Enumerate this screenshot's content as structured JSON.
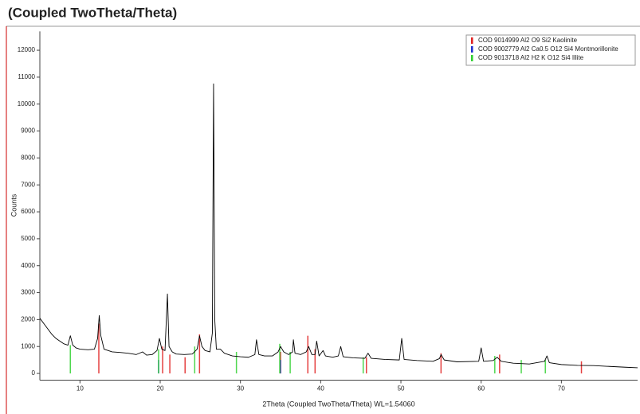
{
  "chart_data": {
    "type": "line",
    "title": "(Coupled TwoTheta/Theta)",
    "x_label": "2Theta (Coupled TwoTheta/Theta) WL=1.54060",
    "y_label": "Counts",
    "color": "#000000",
    "x": [
      5,
      5.5,
      6,
      6.5,
      7,
      7.5,
      8,
      8.5,
      8.8,
      9.1,
      9.5,
      10,
      11,
      11.8,
      12.2,
      12.4,
      12.6,
      13,
      14,
      15,
      16,
      17,
      17.8,
      18.3,
      19,
      19.6,
      19.9,
      20.2,
      20.6,
      20.9,
      21.1,
      21.5,
      22,
      23,
      24,
      24.6,
      24.9,
      25.2,
      25.6,
      26.2,
      26.5,
      26.65,
      26.8,
      27,
      27.5,
      28,
      29,
      30,
      31,
      31.8,
      32,
      32.3,
      33,
      34,
      34.7,
      35,
      35.4,
      36,
      36.5,
      36.6,
      36.8,
      37.5,
      38.2,
      38.5,
      38.9,
      39.3,
      39.5,
      39.8,
      40.3,
      40.6,
      41.5,
      42.2,
      42.5,
      42.8,
      44,
      45.5,
      45.9,
      46.3,
      48,
      49.8,
      50.1,
      50.4,
      52,
      54,
      54.8,
      55,
      55.4,
      57,
      59.7,
      60,
      60.3,
      61.5,
      62,
      62.5,
      64,
      66,
      67.9,
      68.2,
      68.5,
      70,
      72,
      74,
      76,
      78,
      79.5
    ],
    "values": [
      2050,
      1850,
      1650,
      1450,
      1300,
      1200,
      1100,
      1050,
      1400,
      1050,
      950,
      900,
      880,
      900,
      1300,
      2150,
      1400,
      900,
      800,
      780,
      750,
      700,
      800,
      680,
      700,
      850,
      1300,
      900,
      850,
      2950,
      1000,
      800,
      720,
      700,
      720,
      900,
      1400,
      1000,
      850,
      800,
      1500,
      10750,
      2000,
      900,
      900,
      750,
      650,
      620,
      600,
      700,
      1250,
      700,
      650,
      650,
      800,
      1000,
      800,
      700,
      800,
      1250,
      750,
      700,
      800,
      1000,
      700,
      700,
      1200,
      650,
      850,
      650,
      600,
      650,
      1000,
      620,
      580,
      560,
      750,
      560,
      520,
      500,
      1300,
      520,
      480,
      450,
      550,
      700,
      500,
      430,
      450,
      950,
      450,
      480,
      600,
      450,
      380,
      350,
      450,
      650,
      400,
      330,
      300,
      290,
      260,
      230,
      210
    ],
    "references": [
      {
        "name": "COD 9014999 Al2 O9 Si2 Kaolinite",
        "color": "#e02020",
        "x": [
          12.35,
          20.3,
          21.2,
          23.1,
          24.9,
          35.0,
          38.4,
          39.3,
          45.7,
          55.0,
          62.3,
          72.5
        ],
        "values": [
          1850,
          1000,
          700,
          600,
          1450,
          800,
          1400,
          900,
          600,
          750,
          700,
          450
        ]
      },
      {
        "name": "COD 9002779 Al2 Ca0.5 O12 Si4 Montmorillonite",
        "color": "#2030d0",
        "x": [
          19.8,
          35.0
        ],
        "values": [
          500,
          500
        ]
      },
      {
        "name": "COD 9013718 Al2 H2 K O12 Si4 Illite",
        "color": "#30d030",
        "x": [
          8.8,
          19.8,
          24.3,
          29.5,
          34.9,
          36.2,
          45.3,
          61.7,
          65.0,
          68.0
        ],
        "values": [
          1050,
          900,
          1000,
          800,
          1100,
          800,
          600,
          650,
          500,
          500
        ]
      }
    ],
    "xlim": [
      5,
      79.5
    ],
    "ylim": [
      -250,
      12700
    ],
    "xticks": [
      10,
      20,
      30,
      40,
      50,
      60,
      70
    ],
    "yticks": [
      0,
      1000,
      2000,
      3000,
      4000,
      5000,
      6000,
      7000,
      8000,
      9000,
      10000,
      11000,
      12000
    ]
  }
}
